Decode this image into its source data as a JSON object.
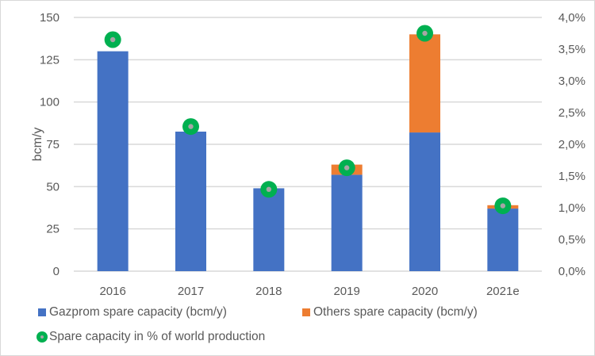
{
  "chart_data": {
    "type": "bar",
    "stacked": true,
    "title": "",
    "categories": [
      "2016",
      "2017",
      "2018",
      "2019",
      "2020",
      "2021e"
    ],
    "series": [
      {
        "name": "Gazprom spare capacity (bcm/y)",
        "type": "bar",
        "axis": "left",
        "color": "#4472c4",
        "values": [
          130,
          82.5,
          49,
          57,
          82,
          37
        ]
      },
      {
        "name": "Others spare capacity (bcm/y)",
        "type": "bar",
        "axis": "left",
        "color": "#ed7d31",
        "values": [
          0,
          0,
          0,
          6,
          58,
          2
        ]
      },
      {
        "name": "Spare capacity in % of world production",
        "type": "scatter",
        "axis": "right",
        "color": "#00b050",
        "marker_center_color": "#a5a5a5",
        "values": [
          3.65,
          2.28,
          1.29,
          1.63,
          3.75,
          1.03
        ]
      }
    ],
    "xlabel": "",
    "ylabel": "bcm/y",
    "ylim": [
      0,
      150
    ],
    "yticks": [
      0,
      25,
      50,
      75,
      100,
      125,
      150
    ],
    "ytick_labels": [
      "0",
      "25",
      "50",
      "75",
      "100",
      "125",
      "150"
    ],
    "y2lim": [
      0,
      4.0
    ],
    "y2ticks": [
      0,
      0.5,
      1.0,
      1.5,
      2.0,
      2.5,
      3.0,
      3.5,
      4.0
    ],
    "y2tick_labels": [
      "0,0%",
      "0,5%",
      "1,0%",
      "1,5%",
      "2,0%",
      "2,5%",
      "3,0%",
      "3,5%",
      "4,0%"
    ],
    "grid": true,
    "legend_position": "bottom"
  },
  "legend": {
    "items": [
      {
        "label": "Gazprom spare capacity (bcm/y)",
        "color": "#4472c4",
        "shape": "square"
      },
      {
        "label": "Others spare capacity (bcm/y)",
        "color": "#ed7d31",
        "shape": "square"
      },
      {
        "label": "Spare capacity in % of world production",
        "color": "#00b050",
        "shape": "circle"
      }
    ]
  }
}
